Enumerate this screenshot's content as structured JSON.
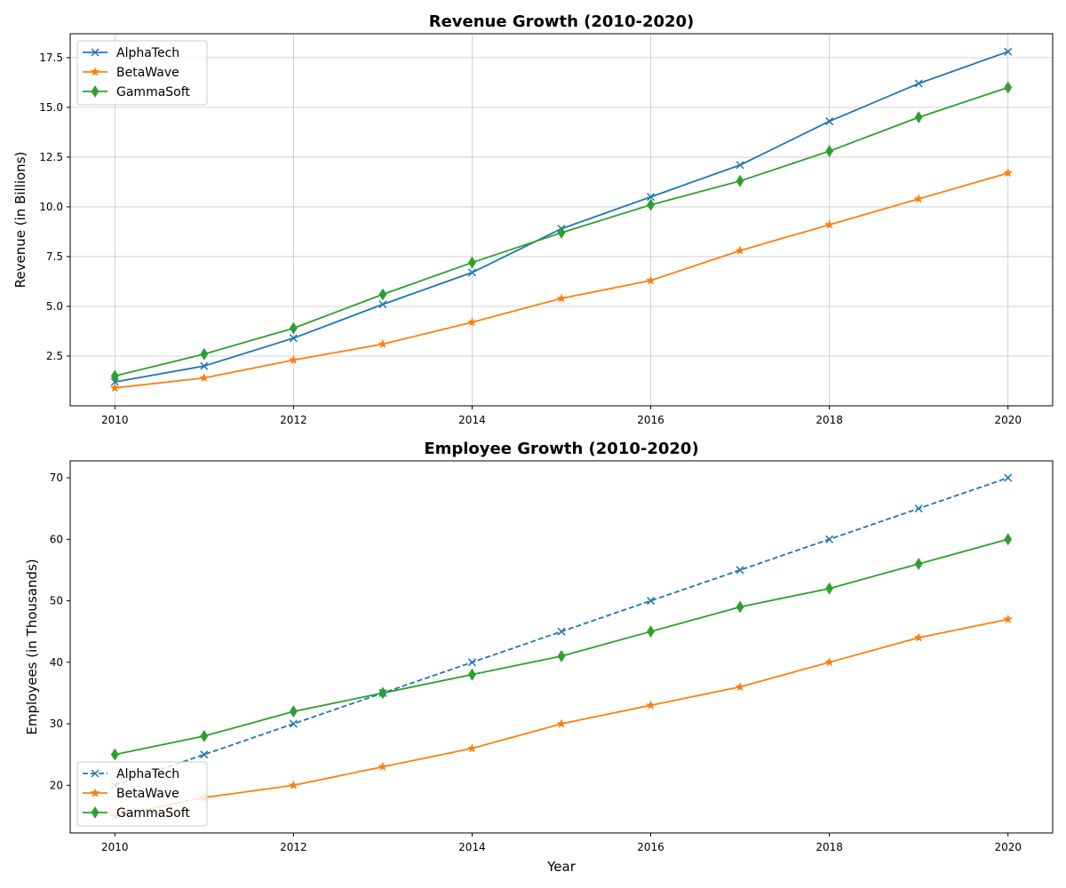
{
  "chart_data": [
    {
      "type": "line",
      "title": "Revenue Growth (2010-2020)",
      "xlabel": "",
      "ylabel": "Revenue (in Billions)",
      "x": [
        2010,
        2011,
        2012,
        2013,
        2014,
        2015,
        2016,
        2017,
        2018,
        2019,
        2020
      ],
      "xlim": [
        2009.5,
        2020.5
      ],
      "ylim": [
        0.0,
        18.7
      ],
      "x_ticks": [
        2010,
        2012,
        2014,
        2016,
        2018,
        2020
      ],
      "x_tick_labels": [
        "2010",
        "2012",
        "2014",
        "2016",
        "2018",
        "2020"
      ],
      "y_ticks": [
        2.5,
        5.0,
        7.5,
        10.0,
        12.5,
        15.0,
        17.5
      ],
      "y_tick_labels": [
        "2.5",
        "5.0",
        "7.5",
        "10.0",
        "12.5",
        "15.0",
        "17.5"
      ],
      "grid": true,
      "legend_position": "upper left",
      "series": [
        {
          "name": "AlphaTech",
          "color": "#1f77b4",
          "marker": "x",
          "linestyle": "solid",
          "values": [
            1.2,
            2.0,
            3.4,
            5.1,
            6.7,
            8.9,
            10.5,
            12.1,
            14.3,
            16.2,
            17.8
          ]
        },
        {
          "name": "BetaWave",
          "color": "#ff7f0e",
          "marker": "star",
          "linestyle": "solid",
          "values": [
            0.9,
            1.4,
            2.3,
            3.1,
            4.2,
            5.4,
            6.3,
            7.8,
            9.1,
            10.4,
            11.7
          ]
        },
        {
          "name": "GammaSoft",
          "color": "#2ca02c",
          "marker": "thin-diamond",
          "linestyle": "solid",
          "values": [
            1.5,
            2.6,
            3.9,
            5.6,
            7.2,
            8.7,
            10.1,
            11.3,
            12.8,
            14.5,
            16.0
          ]
        }
      ]
    },
    {
      "type": "line",
      "title": "Employee Growth (2010-2020)",
      "xlabel": "Year",
      "ylabel": "Employees (in Thousands)",
      "x": [
        2010,
        2011,
        2012,
        2013,
        2014,
        2015,
        2016,
        2017,
        2018,
        2019,
        2020
      ],
      "xlim": [
        2009.5,
        2020.5
      ],
      "ylim": [
        12.25,
        72.75
      ],
      "x_ticks": [
        2010,
        2012,
        2014,
        2016,
        2018,
        2020
      ],
      "x_tick_labels": [
        "2010",
        "2012",
        "2014",
        "2016",
        "2018",
        "2020"
      ],
      "y_ticks": [
        20,
        30,
        40,
        50,
        60,
        70
      ],
      "y_tick_labels": [
        "20",
        "30",
        "40",
        "50",
        "60",
        "70"
      ],
      "grid": false,
      "legend_position": "lower left",
      "series": [
        {
          "name": "AlphaTech",
          "color": "#1f77b4",
          "marker": "x",
          "linestyle": "dashed",
          "values": [
            20,
            25,
            30,
            35,
            40,
            45,
            50,
            55,
            60,
            65,
            70
          ]
        },
        {
          "name": "BetaWave",
          "color": "#ff7f0e",
          "marker": "star",
          "linestyle": "solid",
          "values": [
            15,
            18,
            20,
            23,
            26,
            30,
            33,
            36,
            40,
            44,
            47
          ]
        },
        {
          "name": "GammaSoft",
          "color": "#2ca02c",
          "marker": "thin-diamond",
          "linestyle": "solid",
          "values": [
            25,
            28,
            32,
            35,
            38,
            41,
            45,
            49,
            52,
            56,
            60
          ]
        }
      ]
    }
  ]
}
